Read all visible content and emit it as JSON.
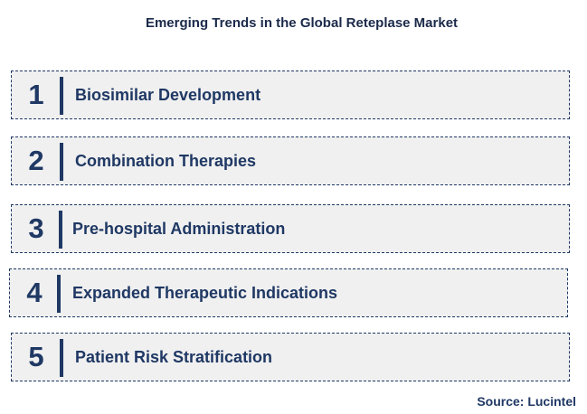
{
  "title": "Emerging Trends in the Global Reteplase Market",
  "trends": [
    {
      "number": "1",
      "label": "Biosimilar Development"
    },
    {
      "number": "2",
      "label": "Combination Therapies"
    },
    {
      "number": "3",
      "label": "Pre-hospital Administration"
    },
    {
      "number": "4",
      "label": "Expanded Therapeutic Indications"
    },
    {
      "number": "5",
      "label": "Patient Risk Stratification"
    }
  ],
  "source": "Source: Lucintel",
  "colors": {
    "accent": "#1f3864",
    "row_background": "#f0f0f0"
  }
}
